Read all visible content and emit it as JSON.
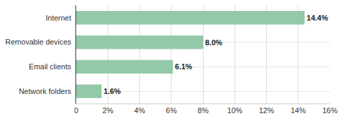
{
  "chart_data": {
    "type": "bar",
    "orientation": "horizontal",
    "categories": [
      "Internet",
      "Removable devices",
      "Email clients",
      "Network folders"
    ],
    "values": [
      14.4,
      8.0,
      6.1,
      1.6
    ],
    "value_labels": [
      "14.4%",
      "8.0%",
      "6.1%",
      "1.6%"
    ],
    "data_labels": true,
    "color": "#93c9a7",
    "xlim": [
      0,
      16
    ],
    "xticks": [
      0,
      {
        "value": 2,
        "label": "2%"
      },
      {
        "value": 4,
        "label": "4%"
      },
      {
        "value": 6,
        "label": "6%"
      },
      {
        "value": 8,
        "label": "8%"
      },
      {
        "value": 10,
        "label": "10%"
      },
      {
        "value": 12,
        "label": "12%"
      },
      {
        "value": 14,
        "label": "14%"
      },
      {
        "value": 16,
        "label": "16%"
      }
    ],
    "grid": true
  }
}
